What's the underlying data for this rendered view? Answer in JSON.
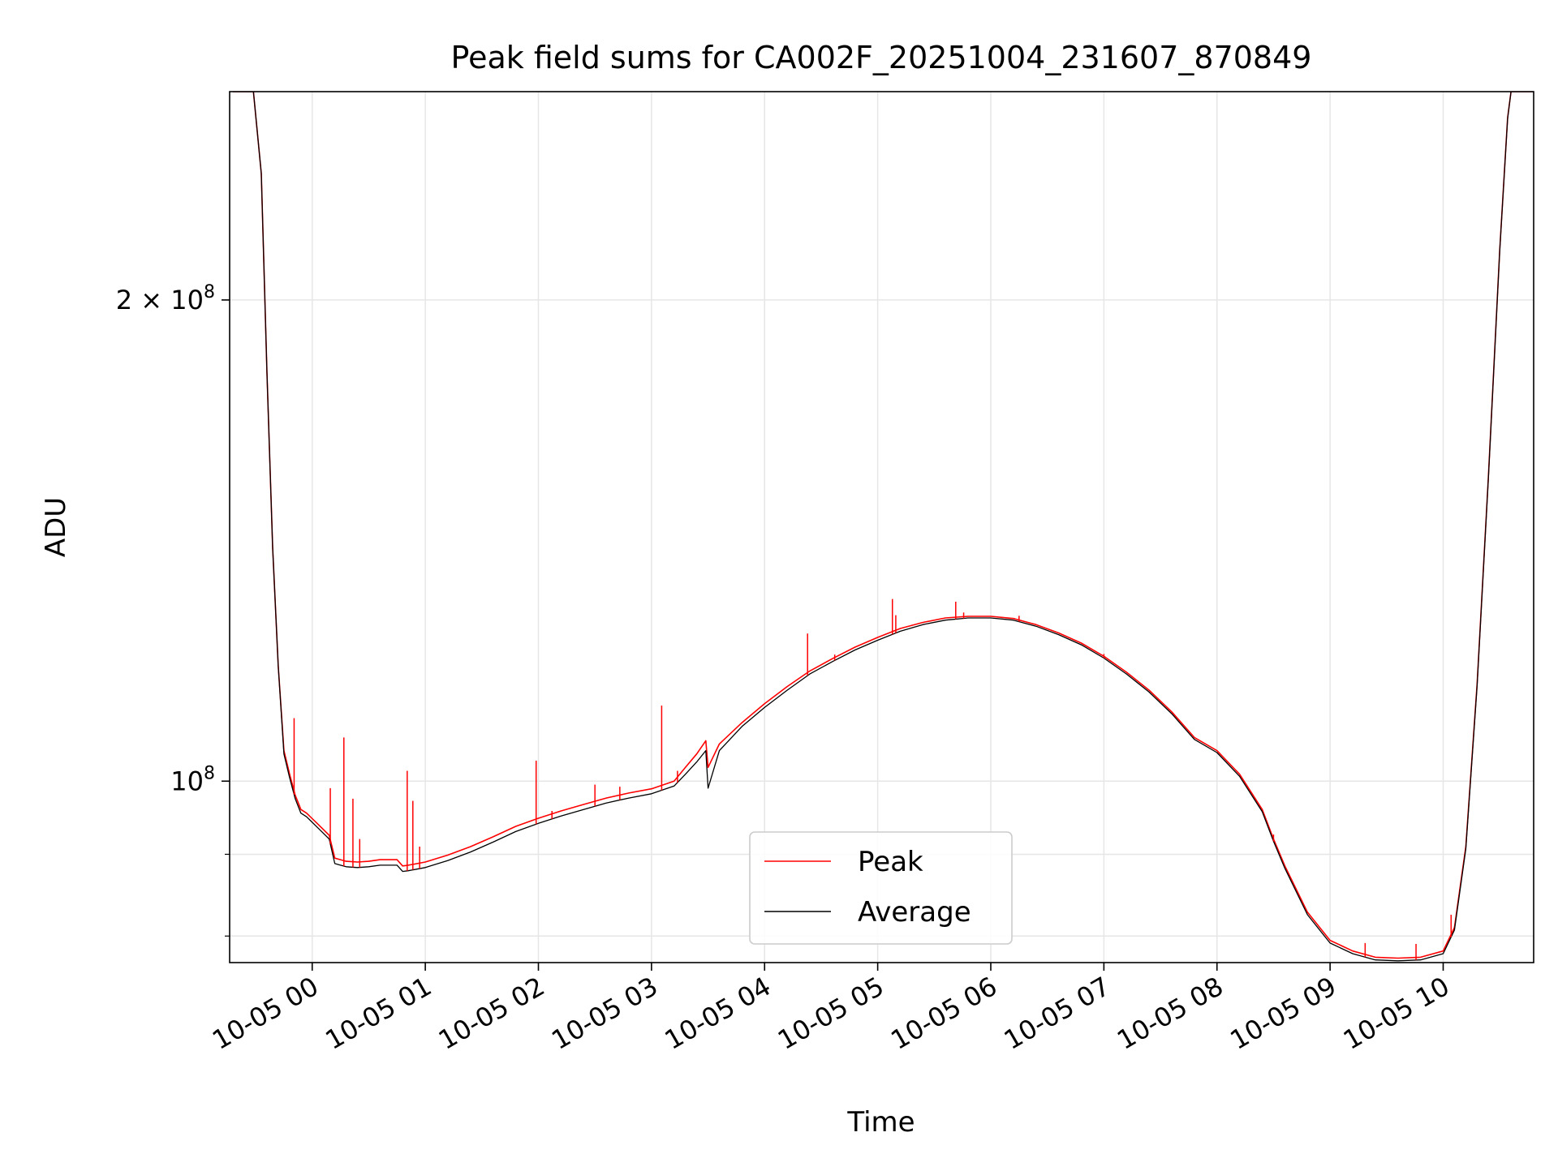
{
  "chart_data": {
    "type": "line",
    "title": "Peak field sums for CA002F_20251004_231607_870849",
    "xlabel": "Time",
    "ylabel": "ADU",
    "yscale": "log",
    "grid": true,
    "legend_position": "lower-center",
    "x_unit": "hours since 2025-10-05 00:00",
    "xlim": [
      -0.73,
      10.8
    ],
    "ylim": [
      77000000,
      270000000
    ],
    "x_ticks": [
      {
        "value": 0,
        "label": "10-05 00"
      },
      {
        "value": 1,
        "label": "10-05 01"
      },
      {
        "value": 2,
        "label": "10-05 02"
      },
      {
        "value": 3,
        "label": "10-05 03"
      },
      {
        "value": 4,
        "label": "10-05 04"
      },
      {
        "value": 5,
        "label": "10-05 05"
      },
      {
        "value": 6,
        "label": "10-05 06"
      },
      {
        "value": 7,
        "label": "10-05 07"
      },
      {
        "value": 8,
        "label": "10-05 08"
      },
      {
        "value": 9,
        "label": "10-05 09"
      },
      {
        "value": 10,
        "label": "10-05 10"
      }
    ],
    "y_major_ticks": [
      {
        "value": 100000000,
        "base": "10",
        "exp": "8",
        "mult": ""
      },
      {
        "value": 200000000,
        "base": "10",
        "exp": "8",
        "mult": "2 × "
      }
    ],
    "y_minor_ticks": [
      80000000,
      90000000
    ],
    "series": [
      {
        "name": "Peak",
        "color": "#ff0000",
        "x": [
          -0.7,
          -0.52,
          -0.45,
          -0.4,
          -0.35,
          -0.3,
          -0.25,
          -0.2,
          -0.15,
          -0.1,
          -0.05,
          0.05,
          0.15,
          0.2,
          0.25,
          0.3,
          0.4,
          0.5,
          0.6,
          0.75,
          0.8,
          0.85,
          1.0,
          1.2,
          1.4,
          1.6,
          1.8,
          2.0,
          2.2,
          2.4,
          2.6,
          2.8,
          3.0,
          3.2,
          3.3,
          3.4,
          3.48,
          3.5,
          3.6,
          3.8,
          4.0,
          4.2,
          4.4,
          4.6,
          4.8,
          5.0,
          5.2,
          5.4,
          5.6,
          5.8,
          6.0,
          6.2,
          6.4,
          6.6,
          6.8,
          7.0,
          7.2,
          7.4,
          7.6,
          7.8,
          8.0,
          8.2,
          8.4,
          8.5,
          8.6,
          8.8,
          9.0,
          9.2,
          9.4,
          9.6,
          9.8,
          10.0,
          10.1,
          10.2,
          10.3,
          10.4,
          10.5,
          10.57,
          10.6,
          10.65,
          10.7,
          10.8
        ],
        "y": [
          270000000,
          270000000,
          240000000,
          180000000,
          140000000,
          118000000,
          104500000,
          101000000,
          98000000,
          96000000,
          95500000,
          94000000,
          92500000,
          89500000,
          89300000,
          89100000,
          89000000,
          89100000,
          89300000,
          89300000,
          88500000,
          88600000,
          89000000,
          89900000,
          91000000,
          92300000,
          93700000,
          94800000,
          95800000,
          96700000,
          97600000,
          98300000,
          98900000,
          100000000,
          102000000,
          104000000,
          106000000,
          102000000,
          105500000,
          108800000,
          111800000,
          114600000,
          117200000,
          119300000,
          121300000,
          123000000,
          124600000,
          125700000,
          126500000,
          126800000,
          126800000,
          126400000,
          125300000,
          123800000,
          122000000,
          119700000,
          117000000,
          114000000,
          110500000,
          106500000,
          104500000,
          101000000,
          96000000,
          92000000,
          88500000,
          82800000,
          79500000,
          78300000,
          77600000,
          77500000,
          77600000,
          78300000,
          81000000,
          91000000,
          115000000,
          155000000,
          215000000,
          260000000,
          270000000,
          270000000,
          270000000,
          270000000
        ]
      },
      {
        "name": "Average",
        "color": "#000000",
        "x": [
          -0.7,
          -0.52,
          -0.45,
          -0.4,
          -0.35,
          -0.3,
          -0.25,
          -0.2,
          -0.15,
          -0.1,
          -0.05,
          0.05,
          0.15,
          0.2,
          0.25,
          0.3,
          0.4,
          0.5,
          0.6,
          0.75,
          0.8,
          0.85,
          1.0,
          1.2,
          1.4,
          1.6,
          1.8,
          2.0,
          2.2,
          2.4,
          2.6,
          2.8,
          3.0,
          3.2,
          3.3,
          3.4,
          3.48,
          3.5,
          3.6,
          3.8,
          4.0,
          4.2,
          4.4,
          4.6,
          4.8,
          5.0,
          5.2,
          5.4,
          5.6,
          5.8,
          6.0,
          6.2,
          6.4,
          6.6,
          6.8,
          7.0,
          7.2,
          7.4,
          7.6,
          7.8,
          8.0,
          8.2,
          8.4,
          8.5,
          8.6,
          8.8,
          9.0,
          9.2,
          9.4,
          9.6,
          9.8,
          10.0,
          10.1,
          10.2,
          10.3,
          10.4,
          10.5,
          10.57,
          10.6,
          10.65,
          10.7,
          10.8
        ],
        "y": [
          270000000,
          270000000,
          240000000,
          180000000,
          140000000,
          118000000,
          104000000,
          100500000,
          97500000,
          95500000,
          95000000,
          93500000,
          92000000,
          88800000,
          88600000,
          88400000,
          88300000,
          88400000,
          88600000,
          88600000,
          87800000,
          87900000,
          88300000,
          89200000,
          90300000,
          91600000,
          93000000,
          94100000,
          95100000,
          96000000,
          96900000,
          97600000,
          98200000,
          99300000,
          101000000,
          102800000,
          104500000,
          99000000,
          104500000,
          108200000,
          111200000,
          114000000,
          116700000,
          118800000,
          120800000,
          122500000,
          124100000,
          125300000,
          126100000,
          126500000,
          126500000,
          126100000,
          125000000,
          123500000,
          121700000,
          119400000,
          116700000,
          113700000,
          110200000,
          106200000,
          104200000,
          100700000,
          95700000,
          91700000,
          88200000,
          82500000,
          79200000,
          78000000,
          77300000,
          77200000,
          77300000,
          78000000,
          80700000,
          90700000,
          114700000,
          154700000,
          214700000,
          259700000,
          270000000,
          270000000,
          270000000,
          270000000
        ]
      }
    ],
    "peak_spikes": [
      {
        "x": -0.16,
        "y": 109500000
      },
      {
        "x": 0.16,
        "y": 99000000
      },
      {
        "x": 0.28,
        "y": 106500000
      },
      {
        "x": 0.36,
        "y": 97500000
      },
      {
        "x": 0.42,
        "y": 92000000
      },
      {
        "x": 0.84,
        "y": 101500000
      },
      {
        "x": 0.89,
        "y": 97200000
      },
      {
        "x": 0.95,
        "y": 91000000
      },
      {
        "x": 1.98,
        "y": 103000000
      },
      {
        "x": 2.12,
        "y": 95800000
      },
      {
        "x": 2.5,
        "y": 99500000
      },
      {
        "x": 2.72,
        "y": 99200000
      },
      {
        "x": 3.09,
        "y": 111500000
      },
      {
        "x": 3.23,
        "y": 101500000
      },
      {
        "x": 4.38,
        "y": 123700000
      },
      {
        "x": 4.62,
        "y": 120000000
      },
      {
        "x": 5.13,
        "y": 130000000
      },
      {
        "x": 5.16,
        "y": 127000000
      },
      {
        "x": 5.69,
        "y": 129500000
      },
      {
        "x": 5.76,
        "y": 127500000
      },
      {
        "x": 6.25,
        "y": 126900000
      },
      {
        "x": 7.0,
        "y": 120100000
      },
      {
        "x": 8.5,
        "y": 92600000
      },
      {
        "x": 9.31,
        "y": 79200000
      },
      {
        "x": 9.76,
        "y": 79100000
      },
      {
        "x": 10.07,
        "y": 82500000
      }
    ]
  }
}
